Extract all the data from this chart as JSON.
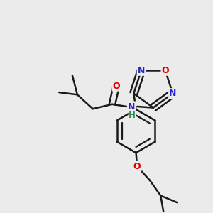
{
  "background_color": "#ebebeb",
  "bond_color": "#1a1a1a",
  "atom_colors": {
    "O": "#dd0000",
    "N": "#2222cc",
    "H": "#2e8b57",
    "C": "#1a1a1a"
  },
  "bond_width": 1.8,
  "dbo": 0.012
}
